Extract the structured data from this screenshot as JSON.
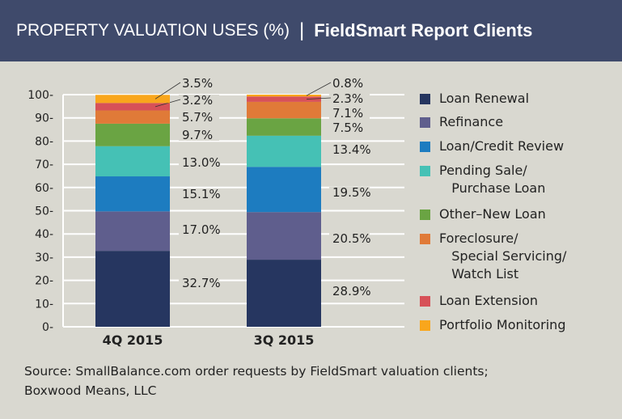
{
  "header": {
    "title": "PROPERTY VALUATION USES (%)",
    "separator": "|",
    "subtitle": "FieldSmart Report Clients"
  },
  "chart_data": {
    "type": "bar",
    "stacked": true,
    "categories": [
      "4Q 2015",
      "3Q 2015"
    ],
    "ylim": [
      0,
      100
    ],
    "yticks": [
      0,
      10,
      20,
      30,
      40,
      50,
      60,
      70,
      80,
      90,
      100
    ],
    "grid": true,
    "legend_position": "right",
    "series": [
      {
        "name": "Loan Renewal",
        "color": "#263660",
        "values": [
          32.7,
          28.9
        ]
      },
      {
        "name": "Refinance",
        "color": "#5f5e8d",
        "values": [
          17.0,
          20.5
        ]
      },
      {
        "name": "Loan/Credit Review",
        "color": "#1d7cc0",
        "values": [
          15.1,
          19.5
        ]
      },
      {
        "name": "Pending Sale/\n   Purchase Loan",
        "color": "#45c1b5",
        "values": [
          13.0,
          13.4
        ]
      },
      {
        "name": "Other–New Loan",
        "color": "#6aa443",
        "values": [
          9.7,
          7.5
        ]
      },
      {
        "name": "Foreclosure/\n   Special Servicing/\n   Watch List",
        "color": "#e07a38",
        "values": [
          5.7,
          7.1
        ]
      },
      {
        "name": "Loan Extension",
        "color": "#d75158",
        "values": [
          3.2,
          2.3
        ]
      },
      {
        "name": "Portfolio Monitoring",
        "color": "#f9a61c",
        "values": [
          3.5,
          0.8
        ]
      }
    ],
    "data_labels": [
      [
        "32.7%",
        "17.0%",
        "15.1%",
        "13.0%",
        "9.7%",
        "5.7%",
        "3.2%",
        "3.5%"
      ],
      [
        "28.9%",
        "20.5%",
        "19.5%",
        "13.4%",
        "7.5%",
        "7.1%",
        "2.3%",
        "0.8%"
      ]
    ]
  },
  "source": {
    "line1": "Source: SmallBalance.com order requests by FieldSmart valuation clients;",
    "line2": "Boxwood Means, LLC"
  }
}
